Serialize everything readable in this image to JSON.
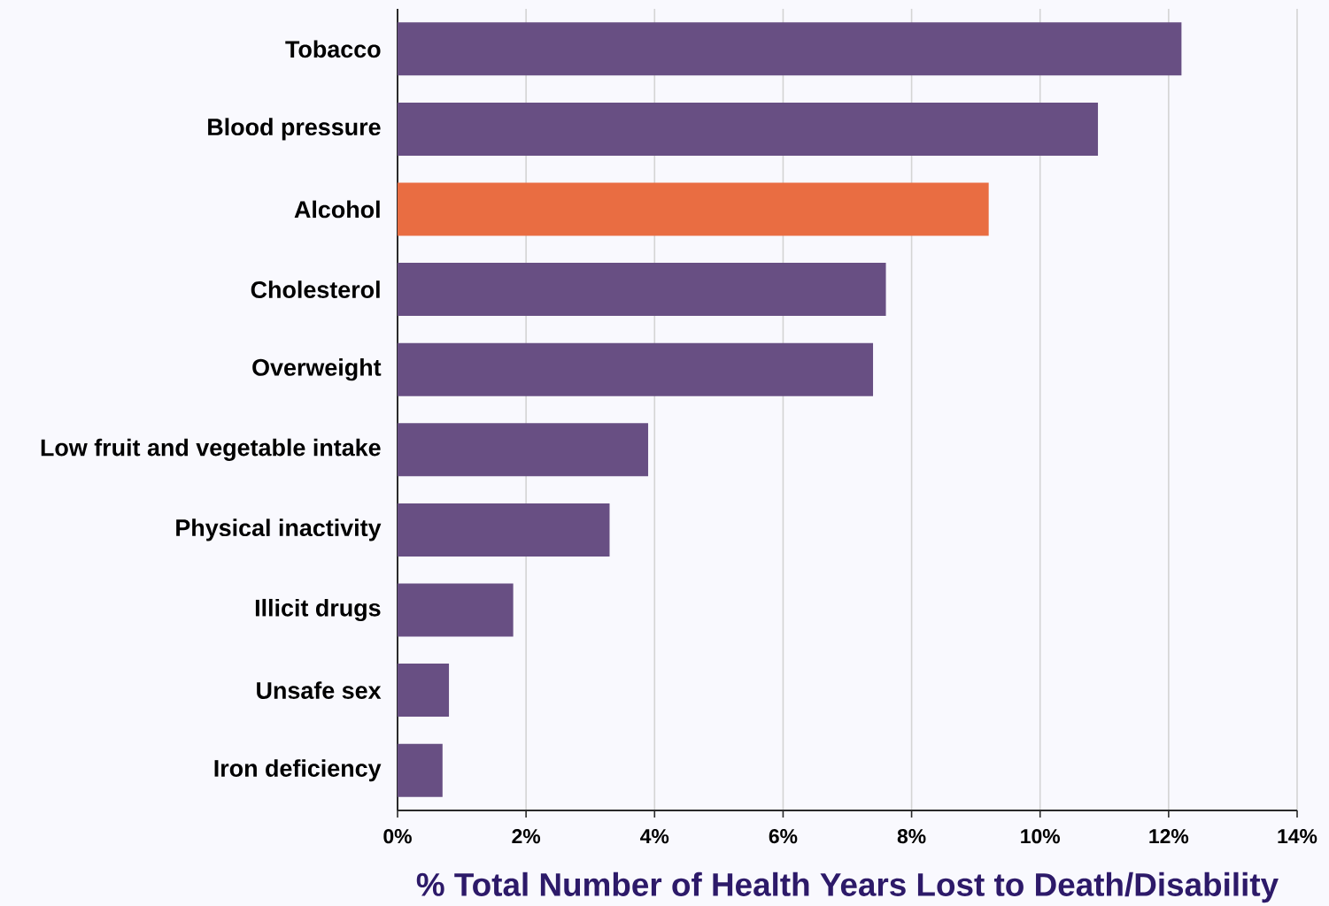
{
  "chart_data": {
    "type": "bar",
    "orientation": "horizontal",
    "categories": [
      "Tobacco",
      "Blood pressure",
      "Alcohol",
      "Cholesterol",
      "Overweight",
      "Low fruit and vegetable intake",
      "Physical inactivity",
      "Illicit drugs",
      "Unsafe sex",
      "Iron deficiency"
    ],
    "values": [
      12.2,
      10.9,
      9.2,
      7.6,
      7.4,
      3.9,
      3.3,
      1.8,
      0.8,
      0.7
    ],
    "colors": [
      "#684f83",
      "#684f83",
      "#e96d42",
      "#684f83",
      "#684f83",
      "#684f83",
      "#684f83",
      "#684f83",
      "#684f83",
      "#684f83"
    ],
    "xlabel": "% Total Number of Health Years Lost to Death/Disability",
    "xlim": [
      0,
      14
    ],
    "xticks": [
      {
        "value": 0,
        "label": "0%"
      },
      {
        "value": 2,
        "label": "2%"
      },
      {
        "value": 4,
        "label": "4%"
      },
      {
        "value": 6,
        "label": "6%"
      },
      {
        "value": 8,
        "label": "8%"
      },
      {
        "value": 10,
        "label": "10%"
      },
      {
        "value": 12,
        "label": "12%"
      },
      {
        "value": 14,
        "label": "14%"
      }
    ],
    "grid": "x"
  }
}
